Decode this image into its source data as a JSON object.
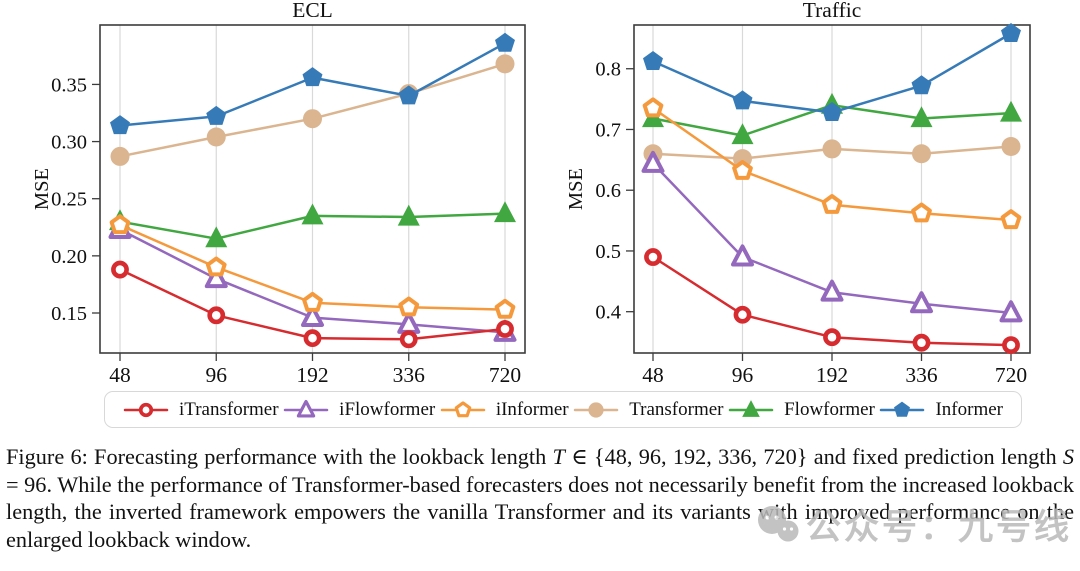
{
  "chart_data": [
    {
      "type": "line",
      "title": "ECL",
      "xlabel": "",
      "ylabel": "MSE",
      "categories": [
        "48",
        "96",
        "192",
        "336",
        "720"
      ],
      "ytick_labels": [
        "0.15",
        "0.20",
        "0.25",
        "0.30",
        "0.35"
      ],
      "ytick_values": [
        0.15,
        0.2,
        0.25,
        0.3,
        0.35
      ],
      "ylim": [
        0.115,
        0.402
      ],
      "grid": "vertical-only",
      "legend_position": "below-shared",
      "series": [
        {
          "name": "iTransformer",
          "values": [
            0.188,
            0.148,
            0.128,
            0.127,
            0.136
          ]
        },
        {
          "name": "iFlowformer",
          "values": [
            0.223,
            0.18,
            0.146,
            0.14,
            0.133
          ]
        },
        {
          "name": "iInformer",
          "values": [
            0.227,
            0.19,
            0.159,
            0.155,
            0.153
          ]
        },
        {
          "name": "Transformer",
          "values": [
            0.287,
            0.304,
            0.32,
            0.342,
            0.368
          ]
        },
        {
          "name": "Flowformer",
          "values": [
            0.23,
            0.215,
            0.235,
            0.234,
            0.237
          ]
        },
        {
          "name": "Informer",
          "values": [
            0.314,
            0.322,
            0.356,
            0.34,
            0.386
          ]
        }
      ]
    },
    {
      "type": "line",
      "title": "Traffic",
      "xlabel": "",
      "ylabel": "MSE",
      "categories": [
        "48",
        "96",
        "192",
        "336",
        "720"
      ],
      "ytick_labels": [
        "0.4",
        "0.5",
        "0.6",
        "0.7",
        "0.8"
      ],
      "ytick_values": [
        0.4,
        0.5,
        0.6,
        0.7,
        0.8
      ],
      "ylim": [
        0.332,
        0.872
      ],
      "grid": "vertical-only",
      "legend_position": "below-shared",
      "series": [
        {
          "name": "iTransformer",
          "values": [
            0.49,
            0.395,
            0.358,
            0.349,
            0.345
          ]
        },
        {
          "name": "iFlowformer",
          "values": [
            0.644,
            0.49,
            0.432,
            0.413,
            0.398
          ]
        },
        {
          "name": "iInformer",
          "values": [
            0.735,
            0.632,
            0.576,
            0.562,
            0.551
          ]
        },
        {
          "name": "Transformer",
          "values": [
            0.66,
            0.652,
            0.668,
            0.66,
            0.672
          ]
        },
        {
          "name": "Flowformer",
          "values": [
            0.718,
            0.69,
            0.74,
            0.718,
            0.727
          ]
        },
        {
          "name": "Informer",
          "values": [
            0.812,
            0.747,
            0.728,
            0.772,
            0.858
          ]
        }
      ]
    }
  ],
  "series_styles": [
    {
      "name": "iTransformer",
      "color": "#d62b2f",
      "marker": "circle",
      "filled": false
    },
    {
      "name": "iFlowformer",
      "color": "#9468bd",
      "marker": "triangle",
      "filled": false
    },
    {
      "name": "iInformer",
      "color": "#f5993d",
      "marker": "pentagon",
      "filled": false
    },
    {
      "name": "Transformer",
      "color": "#dab590",
      "marker": "circle",
      "filled": true
    },
    {
      "name": "Flowformer",
      "color": "#41a741",
      "marker": "triangle",
      "filled": true
    },
    {
      "name": "Informer",
      "color": "#367bb7",
      "marker": "pentagon",
      "filled": true
    }
  ],
  "legend": {
    "labels": [
      "iTransformer",
      "iFlowformer",
      "iInformer",
      "Transformer",
      "Flowformer",
      "Informer"
    ]
  },
  "caption": {
    "segments": [
      {
        "text": "Figure 6: Forecasting performance with the lookback length "
      },
      {
        "text": "T",
        "italic": true
      },
      {
        "text": " ∈ {48, 96, 192, 336, 720} and fixed prediction length "
      },
      {
        "text": "S",
        "italic": true
      },
      {
        "text": " = 96.  While the performance of Transformer-based forecasters does not necessarily benefit from the increased lookback length, the inverted framework empowers the vanilla Transformer and its variants with improved performance on the enlarged lookback window."
      }
    ]
  },
  "watermark": {
    "icon": "wechat-icon",
    "text": "公众号：九号线",
    "color": "#b9b9b9"
  },
  "colors": {
    "grid": "#d9d9d9",
    "spine": "#3c3c3c",
    "tick_text": "#111111"
  }
}
